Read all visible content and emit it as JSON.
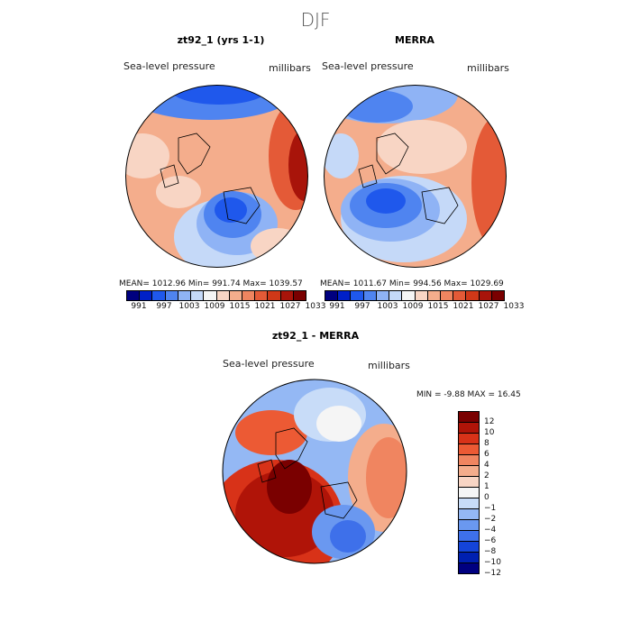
{
  "season_title": "DJF",
  "colors": {
    "sequential": [
      "#00007f",
      "#0020c8",
      "#1f58ec",
      "#4f84f0",
      "#8fb3f5",
      "#c5d9f8",
      "#f5f5f5",
      "#f8d5c4",
      "#f4ad8c",
      "#ef8560",
      "#e45a37",
      "#d03818",
      "#a8140a",
      "#7a0000"
    ],
    "diverging": [
      "#7a0000",
      "#b01408",
      "#d83218",
      "#ec5a34",
      "#f08560",
      "#f4ad8c",
      "#f8d5c4",
      "#f5f5f5",
      "#c8dcf8",
      "#94b8f4",
      "#6a98f0",
      "#3e70ea",
      "#1444d8",
      "#0020b0",
      "#000080"
    ]
  },
  "panels": [
    {
      "title": "zt92_1 (yrs 1-1)",
      "variable": "Sea-level pressure",
      "units": "millibars",
      "stats": "MEAN= 1012.96   Min= 991.74   Max= 1039.57"
    },
    {
      "title": "MERRA",
      "variable": "Sea-level pressure",
      "units": "millibars",
      "stats": "MEAN= 1011.67   Min= 994.56   Max= 1029.69"
    }
  ],
  "colorbar_ticks": [
    "991",
    "997",
    "1003",
    "1009",
    "1015",
    "1021",
    "1027",
    "1033"
  ],
  "diff_panel": {
    "title": "zt92_1 - MERRA",
    "variable": "Sea-level pressure",
    "units": "millibars",
    "stats": "MIN =   -9.88  MAX =   16.45",
    "ticks": [
      "12",
      "10",
      "8",
      "6",
      "4",
      "2",
      "1",
      "0",
      "−1",
      "−2",
      "−4",
      "−6",
      "−8",
      "−10",
      "−12"
    ]
  }
}
